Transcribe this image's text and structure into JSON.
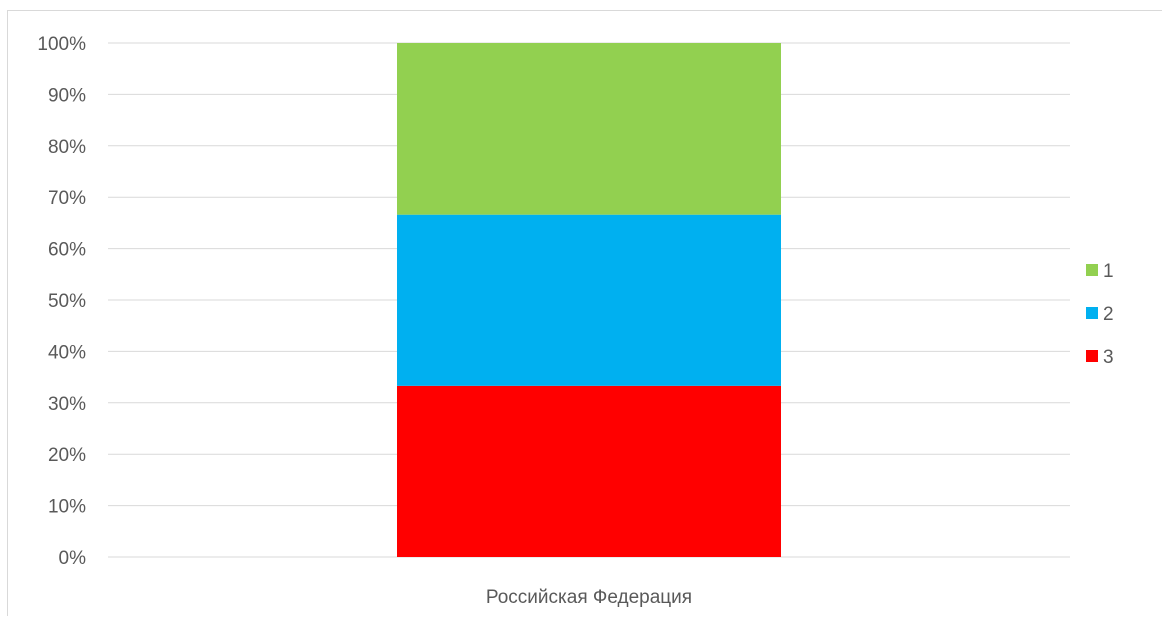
{
  "chart_data": {
    "type": "bar",
    "stacked": "percent",
    "categories": [
      "Российская Федерация"
    ],
    "series": [
      {
        "name": "1",
        "values": [
          33.4
        ],
        "color": "#92D050"
      },
      {
        "name": "2",
        "values": [
          33.3
        ],
        "color": "#00B0F0"
      },
      {
        "name": "3",
        "values": [
          33.3
        ],
        "color": "#FF0000"
      }
    ],
    "ylim": [
      0,
      100
    ],
    "yticks": [
      "0%",
      "10%",
      "20%",
      "30%",
      "40%",
      "50%",
      "60%",
      "70%",
      "80%",
      "90%",
      "100%"
    ],
    "grid": true,
    "legend_position": "right",
    "gridline_color": "#d9d9d9"
  }
}
